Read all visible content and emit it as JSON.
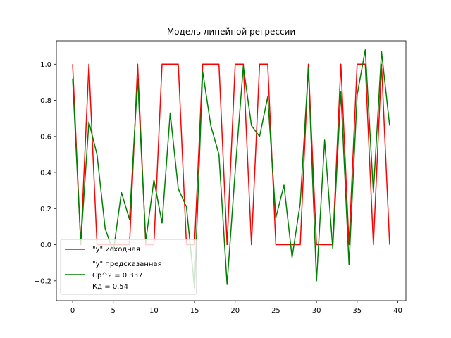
{
  "chart_data": {
    "type": "line",
    "title": "Модель линейной регрессии",
    "xlabel": "",
    "ylabel": "",
    "xlim": [
      -2,
      41
    ],
    "ylim": [
      -0.31,
      1.13
    ],
    "x_ticks": [
      0,
      5,
      10,
      15,
      20,
      25,
      30,
      35,
      40
    ],
    "y_ticks": [
      -0.2,
      0.0,
      0.2,
      0.4,
      0.6,
      0.8,
      1.0
    ],
    "y_tick_labels": [
      "−0.2",
      "0.0",
      "0.2",
      "0.4",
      "0.6",
      "0.8",
      "1.0"
    ],
    "grid": false,
    "legend_position": "lower-left",
    "x": [
      0,
      1,
      2,
      3,
      4,
      5,
      6,
      7,
      8,
      9,
      10,
      11,
      12,
      13,
      14,
      15,
      16,
      17,
      18,
      19,
      20,
      21,
      22,
      23,
      24,
      25,
      26,
      27,
      28,
      29,
      30,
      31,
      32,
      33,
      34,
      35,
      36,
      37,
      38,
      39
    ],
    "series": [
      {
        "name": "\"y\" исходная",
        "color": "#ff0000",
        "values": [
          1,
          0,
          1,
          0,
          0,
          0,
          0,
          0,
          1,
          0,
          0,
          1,
          1,
          1,
          0,
          0,
          1,
          1,
          1,
          0,
          1,
          1,
          0,
          1,
          1,
          0,
          0,
          0,
          0,
          1,
          0,
          0,
          0,
          1,
          0,
          1,
          1,
          0,
          1,
          0
        ]
      },
      {
        "name": "\"y\" предсказанная",
        "color": "#008000",
        "values": [
          0.92,
          0.01,
          0.68,
          0.5,
          0.09,
          -0.04,
          0.29,
          0.14,
          0.92,
          0.02,
          0.36,
          0.12,
          0.73,
          0.31,
          0.21,
          -0.24,
          0.96,
          0.66,
          0.5,
          -0.22,
          0.41,
          0.99,
          0.66,
          0.6,
          0.82,
          0.15,
          0.33,
          -0.07,
          0.23,
          0.98,
          -0.2,
          0.58,
          -0.02,
          0.85,
          -0.11,
          0.83,
          1.08,
          0.29,
          1.07,
          0.66
        ]
      }
    ],
    "legend_extra_lines": [
      "Ср^2 = 0.337",
      "Кд = 0.54"
    ]
  }
}
